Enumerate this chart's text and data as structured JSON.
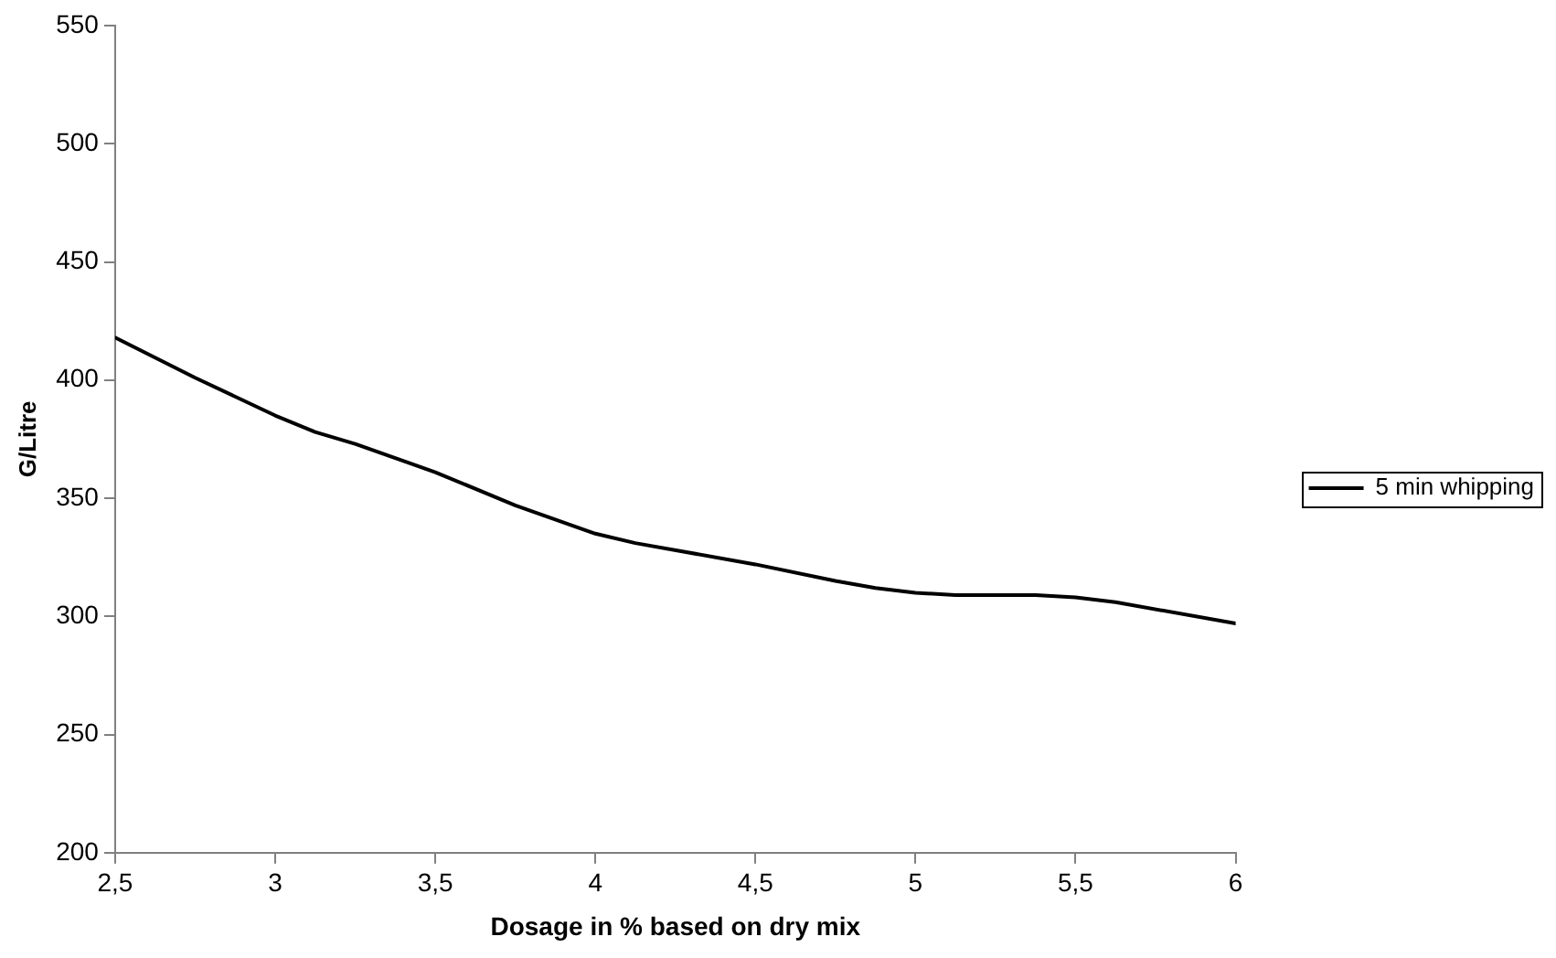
{
  "chart_data": {
    "type": "line",
    "xlabel": "Dosage in % based on dry mix",
    "ylabel": "G/Litre",
    "xlim": [
      2.5,
      6
    ],
    "xticks": [
      {
        "value": 2.5,
        "label": "2,5"
      },
      3,
      {
        "value": 3.5,
        "label": "3,5"
      },
      4,
      {
        "value": 4.5,
        "label": "4,5"
      },
      5,
      {
        "value": 5.5,
        "label": "5,5"
      },
      6
    ],
    "ylim": [
      200,
      550
    ],
    "yticks": [
      200,
      250,
      300,
      350,
      400,
      450,
      500,
      550
    ],
    "grid": false,
    "legend": "right",
    "marker": "none",
    "line_style": "solid",
    "series": [
      {
        "name": "5 min whipping",
        "color": "#000000",
        "x": [
          2.5,
          2.75,
          3,
          3.125,
          3.25,
          3.5,
          3.75,
          4,
          4.125,
          4.5,
          4.75,
          4.875,
          5,
          5.125,
          5.375,
          5.5,
          5.625,
          6
        ],
        "values": [
          418,
          401,
          385,
          378,
          373,
          361,
          347,
          335,
          331,
          322,
          315,
          312,
          310,
          309,
          309,
          308,
          306,
          297
        ]
      }
    ]
  }
}
